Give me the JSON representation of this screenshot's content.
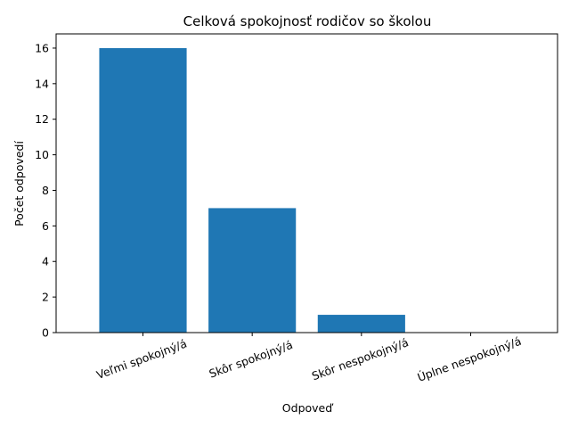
{
  "chart_data": {
    "type": "bar",
    "title": "Celková spokojnosť rodičov so školou",
    "xlabel": "Odpoveď",
    "ylabel": "Počet odpovedí",
    "categories": [
      "Veľmi spokojný/á",
      "Skôr spokojný/á",
      "Skôr nespokojný/á",
      "Úplne nespokojný/á"
    ],
    "values": [
      16,
      7,
      1,
      0
    ],
    "ylim": [
      0,
      16.8
    ],
    "yticks": [
      0,
      2,
      4,
      6,
      8,
      10,
      12,
      14,
      16
    ],
    "bar_color": "#1f77b4",
    "grid": false
  }
}
